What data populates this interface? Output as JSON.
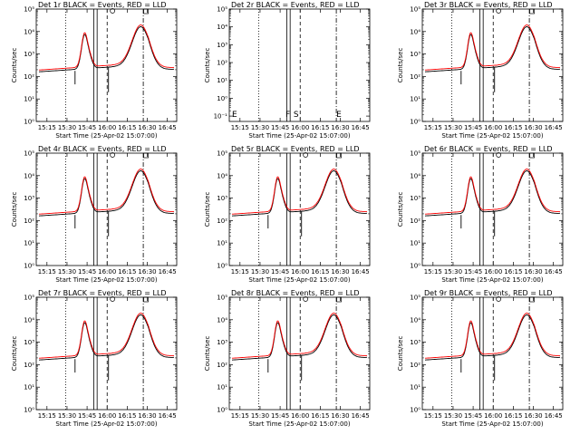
{
  "chart_data": [
    {
      "type": "line",
      "title": "Det 1r BLACK = Events, RED = LLD",
      "xlabel": "Start Time (25-Apr-02 15:07:00)",
      "ylabel": "Counts/sec",
      "x_tick_labels": [
        "15:15",
        "15:30",
        "15:45",
        "16:00",
        "16:15",
        "16:30",
        "16:45"
      ],
      "y_tick_labels": [
        "10⁰",
        "10¹",
        "10²",
        "10³",
        "10⁴",
        "10⁵"
      ],
      "x_range_min_after_start": [
        0,
        105
      ],
      "y_range_log10": [
        0,
        5
      ],
      "has_data": true,
      "attenuator_markers": [],
      "colors": {
        "events": "#000000",
        "lld": "#ff0000"
      },
      "series": [
        {
          "name": "Events",
          "color": "#000000"
        },
        {
          "name": "LLD",
          "color": "#ff0000"
        }
      ]
    },
    {
      "type": "line",
      "title": "Det 2r BLACK = Events, RED = LLD",
      "xlabel": "Start Time (25-Apr-02 15:07:00)",
      "ylabel": "Counts/sec",
      "x_tick_labels": [
        "15:15",
        "15:30",
        "15:45",
        "16:00",
        "16:15",
        "16:30",
        "16:45"
      ],
      "y_tick_labels": [
        "10⁻¹",
        "10⁰",
        "10¹",
        "10²",
        "10³",
        "10⁴",
        "10⁵"
      ],
      "x_range_min_after_start": [
        0,
        105
      ],
      "y_range_log10": [
        -1.3,
        5
      ],
      "has_data": false,
      "attenuator_markers": [
        "E",
        "F",
        "S",
        "E"
      ],
      "series": []
    },
    {
      "type": "line",
      "title": "Det 3r BLACK = Events, RED = LLD",
      "xlabel": "Start Time (25-Apr-02 15:07:00)",
      "ylabel": "Counts/sec",
      "x_tick_labels": [
        "15:15",
        "15:30",
        "15:45",
        "16:00",
        "16:15",
        "16:30",
        "16:45"
      ],
      "y_tick_labels": [
        "10⁰",
        "10¹",
        "10²",
        "10³",
        "10⁴",
        "10⁵"
      ],
      "x_range_min_after_start": [
        0,
        105
      ],
      "y_range_log10": [
        0,
        5
      ],
      "has_data": true,
      "attenuator_markers": [],
      "series": [
        {
          "name": "Events",
          "color": "#000000"
        },
        {
          "name": "LLD",
          "color": "#ff0000"
        }
      ]
    },
    {
      "type": "line",
      "title": "Det 4r BLACK = Events, RED = LLD",
      "xlabel": "Start Time (25-Apr-02 15:07:00)",
      "ylabel": "Counts/sec",
      "x_tick_labels": [
        "15:15",
        "15:30",
        "15:45",
        "16:00",
        "16:15",
        "16:30",
        "16:45"
      ],
      "y_tick_labels": [
        "10⁰",
        "10¹",
        "10²",
        "10³",
        "10⁴",
        "10⁵"
      ],
      "x_range_min_after_start": [
        0,
        105
      ],
      "y_range_log10": [
        0,
        5
      ],
      "has_data": true,
      "attenuator_markers": [],
      "series": [
        {
          "name": "Events",
          "color": "#000000"
        },
        {
          "name": "LLD",
          "color": "#ff0000"
        }
      ]
    },
    {
      "type": "line",
      "title": "Det 5r BLACK = Events, RED = LLD",
      "xlabel": "Start Time (25-Apr-02 15:07:00)",
      "ylabel": "Counts/sec",
      "x_tick_labels": [
        "15:15",
        "15:30",
        "15:45",
        "16:00",
        "16:15",
        "16:30",
        "16:45"
      ],
      "y_tick_labels": [
        "10⁰",
        "10¹",
        "10²",
        "10³",
        "10⁴",
        "10⁵"
      ],
      "x_range_min_after_start": [
        0,
        105
      ],
      "y_range_log10": [
        0,
        5
      ],
      "has_data": true,
      "attenuator_markers": [],
      "series": [
        {
          "name": "Events",
          "color": "#000000"
        },
        {
          "name": "LLD",
          "color": "#ff0000"
        }
      ]
    },
    {
      "type": "line",
      "title": "Det 6r BLACK = Events, RED = LLD",
      "xlabel": "Start Time (25-Apr-02 15:07:00)",
      "ylabel": "Counts/sec",
      "x_tick_labels": [
        "15:15",
        "15:30",
        "15:45",
        "16:00",
        "16:15",
        "16:30",
        "16:45"
      ],
      "y_tick_labels": [
        "10⁰",
        "10¹",
        "10²",
        "10³",
        "10⁴",
        "10⁵"
      ],
      "x_range_min_after_start": [
        0,
        105
      ],
      "y_range_log10": [
        0,
        5
      ],
      "has_data": true,
      "attenuator_markers": [],
      "series": [
        {
          "name": "Events",
          "color": "#000000"
        },
        {
          "name": "LLD",
          "color": "#ff0000"
        }
      ]
    },
    {
      "type": "line",
      "title": "Det 7r BLACK = Events, RED = LLD",
      "xlabel": "Start Time (25-Apr-02 15:07:00)",
      "ylabel": "Counts/sec",
      "x_tick_labels": [
        "15:15",
        "15:30",
        "15:45",
        "16:00",
        "16:15",
        "16:30",
        "16:45"
      ],
      "y_tick_labels": [
        "10⁰",
        "10¹",
        "10²",
        "10³",
        "10⁴",
        "10⁵"
      ],
      "x_range_min_after_start": [
        0,
        105
      ],
      "y_range_log10": [
        0,
        5
      ],
      "has_data": true,
      "attenuator_markers": [],
      "series": [
        {
          "name": "Events",
          "color": "#000000"
        },
        {
          "name": "LLD",
          "color": "#ff0000"
        }
      ]
    },
    {
      "type": "line",
      "title": "Det 8r BLACK = Events, RED = LLD",
      "xlabel": "Start Time (25-Apr-02 15:07:00)",
      "ylabel": "Counts/sec",
      "x_tick_labels": [
        "15:15",
        "15:30",
        "15:45",
        "16:00",
        "16:15",
        "16:30",
        "16:45"
      ],
      "y_tick_labels": [
        "10⁰",
        "10¹",
        "10²",
        "10³",
        "10⁴",
        "10⁵"
      ],
      "x_range_min_after_start": [
        0,
        105
      ],
      "y_range_log10": [
        0,
        5
      ],
      "has_data": true,
      "attenuator_markers": [],
      "series": [
        {
          "name": "Events",
          "color": "#000000"
        },
        {
          "name": "LLD",
          "color": "#ff0000"
        }
      ]
    },
    {
      "type": "line",
      "title": "Det 9r BLACK = Events, RED = LLD",
      "xlabel": "Start Time (25-Apr-02 15:07:00)",
      "ylabel": "Counts/sec",
      "x_tick_labels": [
        "15:15",
        "15:30",
        "15:45",
        "16:00",
        "16:15",
        "16:30",
        "16:45"
      ],
      "y_tick_labels": [
        "10⁰",
        "10¹",
        "10²",
        "10³",
        "10⁴",
        "10⁵"
      ],
      "x_range_min_after_start": [
        0,
        105
      ],
      "y_range_log10": [
        0,
        5
      ],
      "has_data": true,
      "attenuator_markers": [],
      "series": [
        {
          "name": "Events",
          "color": "#000000"
        },
        {
          "name": "LLD",
          "color": "#ff0000"
        }
      ]
    }
  ]
}
